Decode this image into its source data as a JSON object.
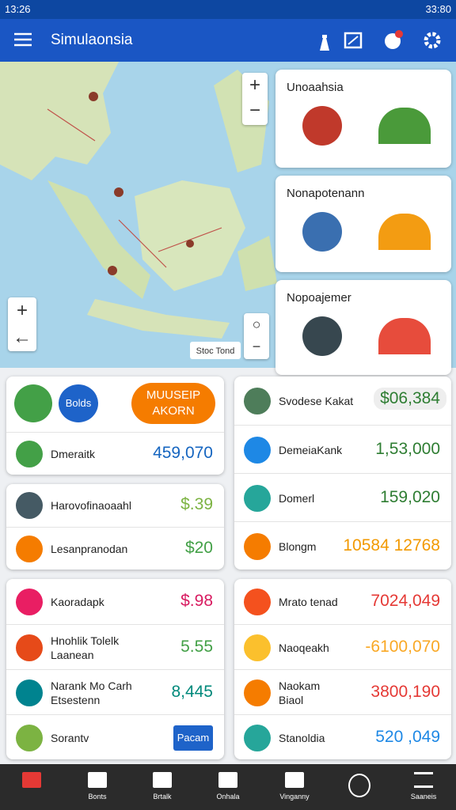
{
  "status_bar": {
    "time": "13:26",
    "clock": "33:80"
  },
  "app_bar": {
    "title": "Simulaonsia"
  },
  "map": {
    "label": "Stoc Tond"
  },
  "map_cards": [
    {
      "title": "Unoaahsia"
    },
    {
      "title": "Nonapotenann"
    },
    {
      "title": "Nopoajemer"
    }
  ],
  "panels": [
    {
      "button_small": "Bolds",
      "button_large": [
        "MUUSEIP",
        "AKORN"
      ],
      "rows": [
        {
          "label": [
            "Dmeraitk"
          ],
          "value": "459,070",
          "color": "#1565c0",
          "icon_color": "#43a047"
        }
      ]
    },
    {
      "rows": [
        {
          "label": [
            "Svodese Kakat"
          ],
          "value": "$06,384",
          "color": "#2e7d32",
          "icon_color": "#4e7d5a"
        },
        {
          "label": [
            "DemeiaKank"
          ],
          "value": "1,53,000",
          "color": "#2e7d32",
          "icon_color": "#1e88e5"
        },
        {
          "label": [
            "Domerl"
          ],
          "value": "159,020",
          "color": "#2e7d32",
          "icon_color": "#26a69a"
        },
        {
          "label": [
            "Blongm"
          ],
          "value": "10584 12768",
          "color": "#f29900",
          "icon_color": "#f57c00"
        }
      ]
    },
    {
      "rows": [
        {
          "label": [
            "Harovofinaoaahl"
          ],
          "value": "$.39",
          "color": "#7cb342",
          "icon_color": "#455a64"
        },
        {
          "label": [
            "Lesanpranodan"
          ],
          "value": "$20",
          "color": "#43a047",
          "icon_color": "#f57c00"
        }
      ]
    },
    {
      "rows": [
        {
          "label": [
            "Kaoradapk"
          ],
          "value": "$.98",
          "color": "#d81b60",
          "icon_color": "#e91e63"
        },
        {
          "label": [
            "Hnohlik Tolelk",
            "Laanean"
          ],
          "value": "5.55",
          "color": "#43a047",
          "icon_color": "#e64a19"
        },
        {
          "label": [
            "Narank Mo Carh",
            "Etsestenn"
          ],
          "value": "8,445",
          "color": "#00897b",
          "icon_color": "#00838f"
        },
        {
          "label": [
            "Sorantv"
          ],
          "button": "Pacam",
          "icon_color": "#7cb342"
        }
      ]
    },
    {
      "rows": [
        {
          "label": [
            "Mrato tenad"
          ],
          "value": "7024,049",
          "color": "#e53935",
          "icon_color": "#f4511e"
        },
        {
          "label": [
            "Naoqeakh"
          ],
          "value": "-6100,070",
          "color": "#f9a825",
          "icon_color": "#fbc02d"
        },
        {
          "label": [
            "Naokam",
            "Biaol"
          ],
          "value": "3800,190",
          "color": "#e53935",
          "icon_color": "#f57c00"
        },
        {
          "label": [
            "Stanoldia"
          ],
          "value": "520 ,049",
          "color": "#1e88e5",
          "icon_color": "#26a69a"
        }
      ]
    }
  ],
  "bottom_nav": {
    "labels": [
      "Bonts",
      "Brtalk",
      "Onhala",
      "Vinganny",
      "Saaneis"
    ]
  }
}
